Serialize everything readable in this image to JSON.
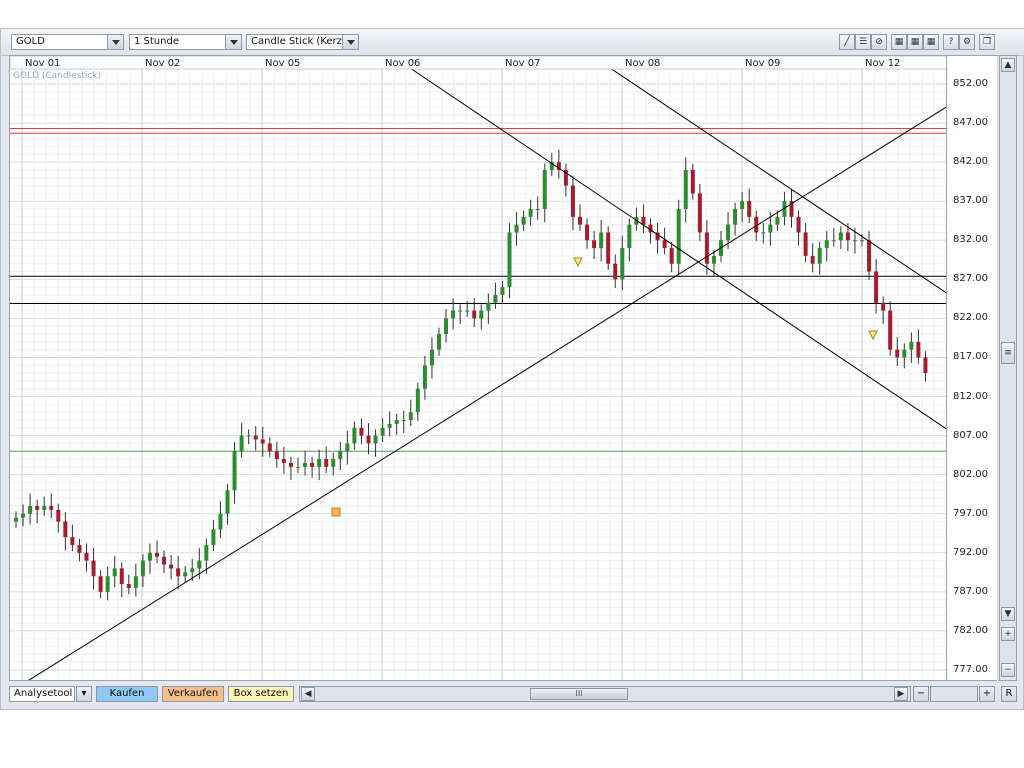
{
  "toolbar": {
    "symbol": "GOLD",
    "interval": "1 Stunde",
    "chart_type": "Candle Stick (Kerze",
    "tool_icons": [
      "draw-line-icon",
      "menu-lines-icon",
      "pen-crossed-icon",
      "grid-table-icon",
      "grid-table-2-icon",
      "grid-table-3-icon",
      "help-icon",
      "settings-icon",
      "restore-window-icon"
    ]
  },
  "chart": {
    "legend": "GOLD (Candlestick)",
    "x_labels": [
      "Nov 01",
      "Nov 02",
      "Nov 05",
      "Nov 06",
      "Nov 07",
      "Nov 08",
      "Nov 09",
      "Nov 12"
    ],
    "y_labels": [
      "852.00",
      "847.00",
      "842.00",
      "837.00",
      "832.00",
      "827.00",
      "822.00",
      "817.00",
      "812.00",
      "807.00",
      "802.00",
      "797.00",
      "792.00",
      "787.00",
      "782.00",
      "777.00"
    ]
  },
  "chart_data": {
    "type": "candlestick",
    "title": "GOLD (Candlestick)",
    "xlabel": "",
    "ylabel": "",
    "ylim": [
      775,
      855
    ],
    "x_categories": [
      "Nov 01",
      "Nov 02",
      "Nov 05",
      "Nov 06",
      "Nov 07",
      "Nov 08",
      "Nov 09",
      "Nov 12"
    ],
    "up_color": "#2e8b2e",
    "down_color": "#a51c2e",
    "closes_hourly_approx": [
      796.5,
      797,
      798,
      797.5,
      798,
      797.5,
      796,
      794,
      793,
      792,
      791,
      789,
      787,
      789,
      790,
      788,
      787.5,
      789,
      791,
      792,
      791.5,
      790.5,
      790,
      789,
      789.5,
      790,
      791,
      793,
      795,
      797,
      800,
      805,
      807,
      807,
      806.5,
      806,
      805,
      804,
      803.5,
      803,
      803,
      803.5,
      803,
      804,
      803,
      804,
      805,
      806,
      808,
      807,
      806,
      807,
      808,
      808.5,
      809,
      809,
      810,
      813,
      816,
      818,
      820,
      822,
      823,
      823,
      823,
      822,
      823,
      824,
      825,
      826,
      833,
      834,
      835,
      836,
      836,
      841,
      842,
      841,
      839,
      835,
      834,
      832,
      831,
      833,
      829,
      827,
      831,
      834,
      835,
      834,
      833,
      832,
      831,
      829,
      836,
      841,
      838,
      833,
      829,
      830,
      832,
      834,
      836,
      837,
      835,
      833,
      833,
      834,
      835,
      837,
      835,
      833,
      830,
      829,
      831,
      832,
      832,
      833,
      832,
      832,
      832,
      828,
      824,
      823,
      818,
      817,
      818,
      819,
      817,
      815
    ],
    "horizontal_lines": [
      {
        "value": 846.3,
        "color": "#cc4444"
      },
      {
        "value": 845.7,
        "color": "#cc4444"
      },
      {
        "value": 827.4,
        "color": "#000000"
      },
      {
        "value": 823.9,
        "color": "#000000"
      },
      {
        "value": 805.0,
        "color": "#5aa05a"
      }
    ]
  },
  "bottom": {
    "analysis_tool": "Analysetool",
    "buy": "Kaufen",
    "sell": "Verkaufen",
    "box": "Box setzen",
    "thumb_label": "III",
    "minus": "−",
    "plus": "+",
    "reset": "R"
  },
  "colors": {
    "buy": "#8fc8f2",
    "sell": "#f5c08a",
    "box": "#fbf4b8"
  }
}
